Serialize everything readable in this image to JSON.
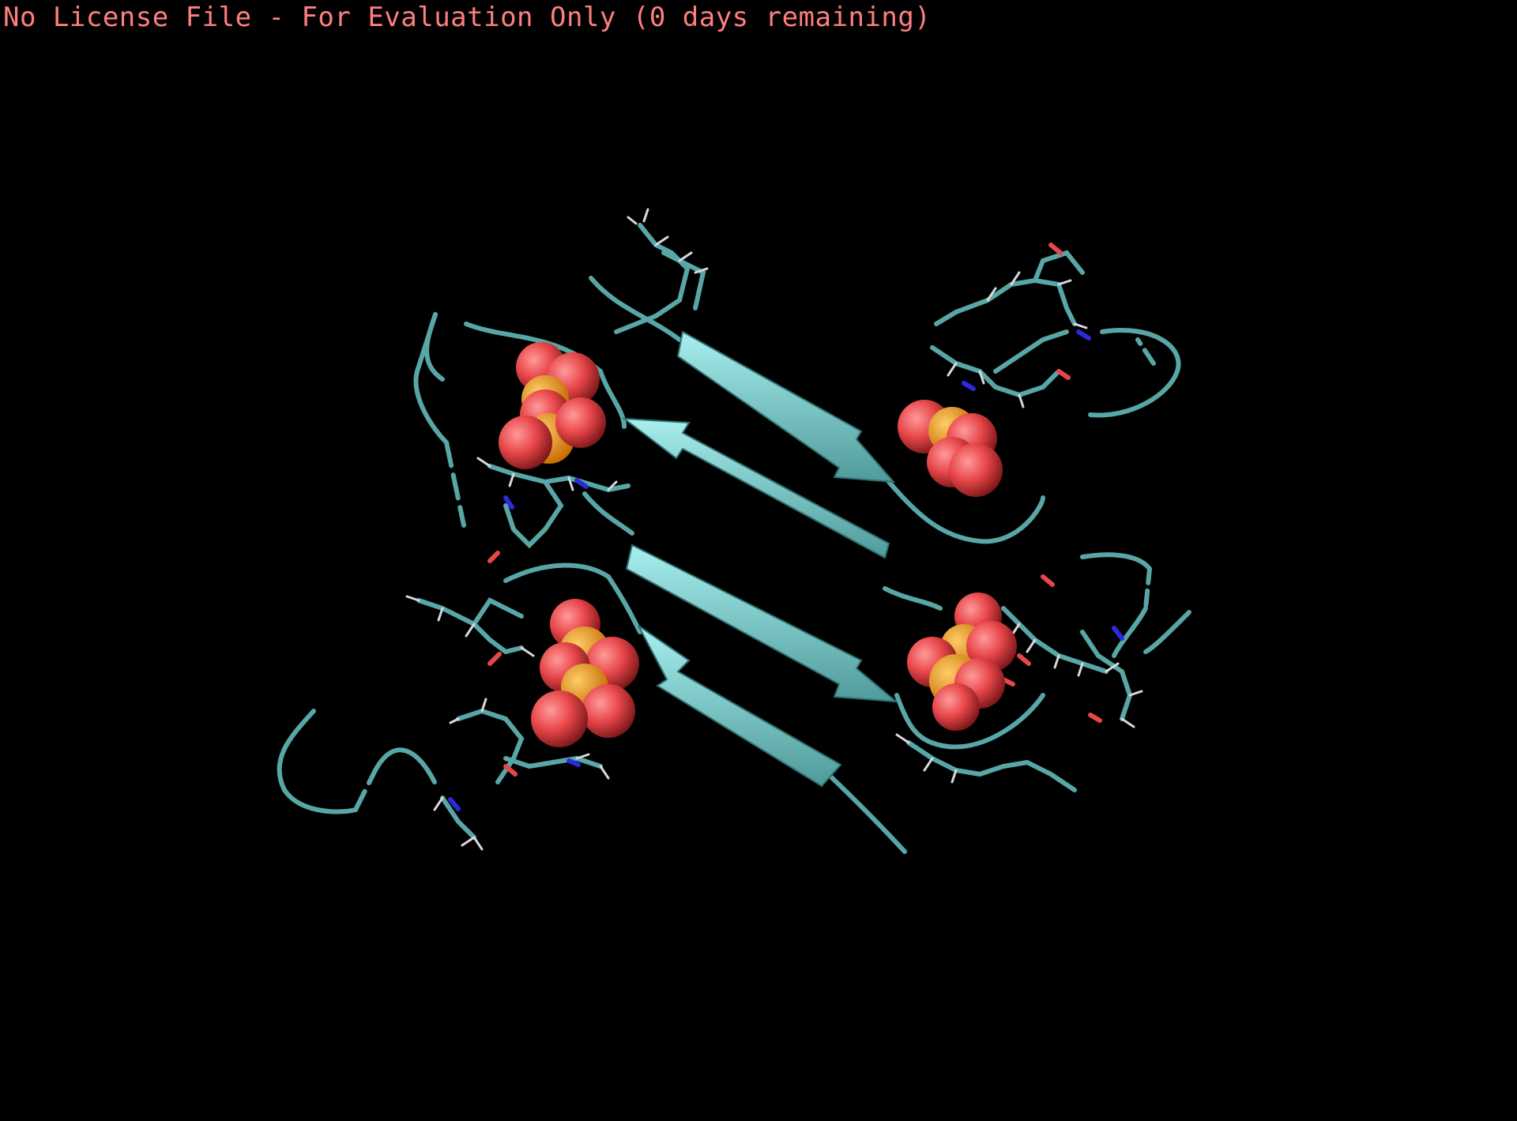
{
  "banner": {
    "text": "No License File - For Evaluation Only (0 days remaining)"
  },
  "colors": {
    "background": "#000000",
    "banner_text": "#ff7f7f",
    "cartoon": "#58a6a6",
    "cartoon_light": "#9ee6e6",
    "oxygen": "#e8474a",
    "phosphorus": "#ff8c00",
    "nitrogen": "#2b2bdd",
    "hydrogen": "#d8d8d8"
  },
  "icons": [
    "beta-sheet-icon",
    "phosphate-sphere-icon",
    "stick-residue-icon"
  ]
}
